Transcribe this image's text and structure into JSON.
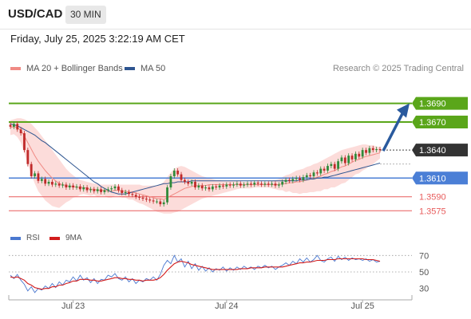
{
  "header": {
    "pair": "USD/CAD",
    "interval": "30 MIN"
  },
  "timestamp": "Friday, July 25, 2025 3:22:19 AM CET",
  "legend": {
    "items": [
      {
        "label": "MA 20 + Bollinger Bands",
        "color": "#f08a84"
      },
      {
        "label": "MA 50",
        "color": "#2e5590"
      }
    ]
  },
  "credit": "Research © 2025 Trading Central",
  "rsi_legend": {
    "items": [
      {
        "label": "RSI",
        "color": "#4a78d0"
      },
      {
        "label": "9MA",
        "color": "#d21c1c"
      }
    ]
  },
  "colors": {
    "bull": "#2f8a3a",
    "bear": "#c02a2a",
    "resistance": "#5aa61a",
    "pivot": "#4b7fd6",
    "support": "#e85c5c",
    "arrow": "#2a5a9e"
  },
  "chart_data": [
    {
      "type": "candlestick",
      "title": "",
      "xlabel": "",
      "ylabel": "",
      "ylim": [
        1.3565,
        1.3705
      ],
      "x_ticks": [
        "Jul 23",
        "Jul 24",
        "Jul 25"
      ],
      "levels": [
        {
          "label": "1.3690",
          "value": 1.369,
          "kind": "resistance"
        },
        {
          "label": "1.3670",
          "value": 1.367,
          "kind": "resistance"
        },
        {
          "label": "1.3640",
          "value": 1.364,
          "kind": "last"
        },
        {
          "label": "1.3610",
          "value": 1.361,
          "kind": "pivot"
        },
        {
          "label": "1.3590",
          "value": 1.359,
          "kind": "support"
        },
        {
          "label": "1.3575",
          "value": 1.3575,
          "kind": "support"
        }
      ],
      "close": [
        1.3665,
        1.3668,
        1.3662,
        1.3658,
        1.364,
        1.3625,
        1.3612,
        1.3615,
        1.3607,
        1.3609,
        1.3604,
        1.3606,
        1.3603,
        1.3604,
        1.3602,
        1.3603,
        1.36,
        1.3602,
        1.36,
        1.3601,
        1.3598,
        1.36,
        1.3597,
        1.3598,
        1.3596,
        1.3598,
        1.3595,
        1.3597,
        1.3598,
        1.3599,
        1.3601,
        1.3597,
        1.3594,
        1.3595,
        1.3593,
        1.3592,
        1.359,
        1.3589,
        1.3588,
        1.3587,
        1.3586,
        1.3585,
        1.3585,
        1.3582,
        1.3584,
        1.36,
        1.3612,
        1.3618,
        1.3614,
        1.3608,
        1.3606,
        1.3604,
        1.3606,
        1.36,
        1.3602,
        1.3599,
        1.36,
        1.3598,
        1.3601,
        1.36,
        1.3602,
        1.3601,
        1.3603,
        1.3602,
        1.3603,
        1.3604,
        1.3602,
        1.3603,
        1.3604,
        1.3603,
        1.3605,
        1.3604,
        1.3603,
        1.3604,
        1.3603,
        1.3604,
        1.3602,
        1.3603,
        1.3606,
        1.3608,
        1.3607,
        1.3609,
        1.361,
        1.3608,
        1.3611,
        1.3613,
        1.3612,
        1.3616,
        1.3615,
        1.362,
        1.3618,
        1.3623,
        1.3625,
        1.362,
        1.3628,
        1.3632,
        1.3626,
        1.3634,
        1.363,
        1.3636,
        1.3633,
        1.364,
        1.3637,
        1.3642,
        1.364,
        1.3641,
        1.364
      ],
      "ma20": [
        1.3664,
        1.3665,
        1.3664,
        1.3661,
        1.3655,
        1.3648,
        1.3641,
        1.3634,
        1.3628,
        1.3623,
        1.3618,
        1.3614,
        1.361,
        1.3607,
        1.3604,
        1.3603,
        1.3602,
        1.3601,
        1.3601,
        1.36,
        1.36,
        1.36,
        1.3599,
        1.3598,
        1.3598,
        1.3597,
        1.3597,
        1.3597,
        1.3596,
        1.3596,
        1.3597,
        1.3597,
        1.3596,
        1.3596,
        1.3595,
        1.3595,
        1.3594,
        1.3593,
        1.3592,
        1.3591,
        1.359,
        1.3589,
        1.3588,
        1.3588,
        1.3587,
        1.3589,
        1.3591,
        1.3593,
        1.3595,
        1.3597,
        1.3599,
        1.36,
        1.3601,
        1.3602,
        1.3602,
        1.3602,
        1.3602,
        1.3603,
        1.3603,
        1.3603,
        1.3603,
        1.3603,
        1.3603,
        1.3603,
        1.3603,
        1.3603,
        1.3603,
        1.3603,
        1.3603,
        1.3603,
        1.3603,
        1.3603,
        1.3603,
        1.3603,
        1.3603,
        1.3603,
        1.3603,
        1.3603,
        1.3604,
        1.3604,
        1.3605,
        1.3605,
        1.3606,
        1.3606,
        1.3607,
        1.3608,
        1.3609,
        1.361,
        1.3611,
        1.3612,
        1.3614,
        1.3615,
        1.3617,
        1.3618,
        1.362,
        1.3622,
        1.3623,
        1.3625,
        1.3627,
        1.3629,
        1.363,
        1.3632,
        1.3633,
        1.3634,
        1.3635,
        1.3636,
        1.3637
      ],
      "bb_upper": [
        1.3672,
        1.3673,
        1.3674,
        1.3674,
        1.3673,
        1.3671,
        1.3668,
        1.3664,
        1.366,
        1.3655,
        1.365,
        1.3645,
        1.364,
        1.3635,
        1.363,
        1.3625,
        1.362,
        1.3616,
        1.3613,
        1.361,
        1.3608,
        1.3607,
        1.3606,
        1.3605,
        1.3604,
        1.3604,
        1.3603,
        1.3603,
        1.3603,
        1.3603,
        1.3603,
        1.3603,
        1.3603,
        1.3603,
        1.3603,
        1.3603,
        1.3603,
        1.3603,
        1.3602,
        1.3602,
        1.3602,
        1.3602,
        1.3602,
        1.3603,
        1.3606,
        1.3611,
        1.3616,
        1.362,
        1.3622,
        1.3623,
        1.3622,
        1.362,
        1.3618,
        1.3616,
        1.3614,
        1.3612,
        1.3611,
        1.361,
        1.3609,
        1.3608,
        1.3608,
        1.3607,
        1.3607,
        1.3607,
        1.3607,
        1.3607,
        1.3606,
        1.3606,
        1.3606,
        1.3606,
        1.3606,
        1.3606,
        1.3606,
        1.3606,
        1.3606,
        1.3607,
        1.3608,
        1.3609,
        1.3611,
        1.3613,
        1.3614,
        1.3616,
        1.3618,
        1.3619,
        1.362,
        1.3622,
        1.3623,
        1.3625,
        1.3626,
        1.3628,
        1.363,
        1.3632,
        1.3634,
        1.3636,
        1.3638,
        1.364,
        1.3641,
        1.3642,
        1.3643,
        1.3644,
        1.3645,
        1.3646,
        1.3646,
        1.3645,
        1.3645,
        1.3644,
        1.3643
      ],
      "bb_lower": [
        1.3656,
        1.3657,
        1.3654,
        1.3648,
        1.3637,
        1.3625,
        1.3614,
        1.3604,
        1.3596,
        1.3591,
        1.3586,
        1.3583,
        1.358,
        1.3579,
        1.3578,
        1.3581,
        1.3584,
        1.3586,
        1.3589,
        1.359,
        1.3592,
        1.3593,
        1.3592,
        1.3591,
        1.3592,
        1.359,
        1.3591,
        1.3591,
        1.3589,
        1.3589,
        1.3591,
        1.3591,
        1.3589,
        1.3589,
        1.3587,
        1.3587,
        1.3585,
        1.3583,
        1.3582,
        1.358,
        1.3578,
        1.3576,
        1.3574,
        1.3573,
        1.3572,
        1.3572,
        1.3572,
        1.3573,
        1.3574,
        1.3576,
        1.3578,
        1.358,
        1.3582,
        1.3584,
        1.3586,
        1.3588,
        1.3589,
        1.359,
        1.3591,
        1.3592,
        1.3593,
        1.3594,
        1.3595,
        1.3596,
        1.3597,
        1.3598,
        1.3599,
        1.3599,
        1.3599,
        1.3599,
        1.36,
        1.36,
        1.36,
        1.36,
        1.36,
        1.3599,
        1.3598,
        1.3597,
        1.3597,
        1.3595,
        1.3596,
        1.3594,
        1.3594,
        1.3593,
        1.3594,
        1.3594,
        1.3595,
        1.3595,
        1.3596,
        1.3596,
        1.3598,
        1.3598,
        1.36,
        1.36,
        1.3602,
        1.3604,
        1.3605,
        1.3608,
        1.3611,
        1.3614,
        1.3615,
        1.3618,
        1.362,
        1.3623,
        1.3625,
        1.3628,
        1.3631
      ],
      "ma50": [
        1.3668,
        1.3667,
        1.3666,
        1.3664,
        1.3662,
        1.366,
        1.3658,
        1.3656,
        1.3653,
        1.365,
        1.3648,
        1.3645,
        1.3642,
        1.3639,
        1.3636,
        1.3633,
        1.363,
        1.3627,
        1.3624,
        1.3621,
        1.3618,
        1.3615,
        1.3612,
        1.3609,
        1.3606,
        1.3604,
        1.3601,
        1.3599,
        1.3597,
        1.3595,
        1.3594,
        1.3593,
        1.3593,
        1.3593,
        1.3594,
        1.3595,
        1.3596,
        1.3597,
        1.3598,
        1.3599,
        1.36,
        1.3601,
        1.3602,
        1.3603,
        1.3604,
        1.3604,
        1.3605,
        1.3605,
        1.3606,
        1.3606,
        1.3606,
        1.3606,
        1.3607,
        1.3607,
        1.3607,
        1.3607,
        1.3607,
        1.3607,
        1.3607,
        1.3607,
        1.3607,
        1.3607,
        1.3607,
        1.3607,
        1.3607,
        1.3607,
        1.3607,
        1.3607,
        1.3607,
        1.3607,
        1.3607,
        1.3607,
        1.3607,
        1.3607,
        1.3607,
        1.3607,
        1.3607,
        1.3607,
        1.3607,
        1.3607,
        1.3607,
        1.3607,
        1.3607,
        1.3608,
        1.3608,
        1.3608,
        1.3609,
        1.3609,
        1.361,
        1.361,
        1.3611,
        1.3611,
        1.3612,
        1.3613,
        1.3614,
        1.3615,
        1.3616,
        1.3617,
        1.3618,
        1.3619,
        1.362,
        1.3621,
        1.3622,
        1.3623,
        1.3624,
        1.3625,
        1.3626
      ],
      "rsi": {
        "ylim": [
          20,
          80
        ],
        "ticks": [
          "70",
          "50",
          "30"
        ],
        "rsi": [
          46,
          42,
          47,
          40,
          35,
          27,
          32,
          25,
          30,
          28,
          33,
          30,
          36,
          31,
          38,
          34,
          40,
          38,
          44,
          39,
          46,
          40,
          43,
          37,
          42,
          36,
          41,
          40,
          46,
          44,
          48,
          42,
          40,
          44,
          38,
          42,
          36,
          40,
          38,
          42,
          40,
          44,
          40,
          47,
          58,
          64,
          60,
          70,
          62,
          66,
          56,
          63,
          54,
          60,
          52,
          57,
          51,
          55,
          50,
          54,
          52,
          56,
          51,
          55,
          52,
          56,
          53,
          57,
          54,
          56,
          53,
          57,
          55,
          58,
          55,
          57,
          53,
          56,
          58,
          61,
          58,
          63,
          60,
          66,
          62,
          67,
          62,
          65,
          70,
          64,
          62,
          66,
          68,
          63,
          69,
          65,
          68,
          64,
          67,
          65,
          66,
          64,
          66,
          63,
          65,
          62,
          63
        ],
        "ma9": [
          44,
          43,
          44,
          42,
          40,
          36,
          34,
          31,
          30,
          29,
          30,
          30,
          32,
          32,
          34,
          34,
          36,
          37,
          39,
          39,
          41,
          41,
          41,
          40,
          40,
          39,
          39,
          40,
          41,
          42,
          43,
          43,
          42,
          42,
          41,
          41,
          40,
          40,
          39,
          40,
          40,
          40,
          41,
          43,
          47,
          52,
          56,
          60,
          62,
          63,
          62,
          61,
          59,
          58,
          57,
          56,
          55,
          54,
          53,
          53,
          53,
          53,
          53,
          53,
          53,
          53,
          54,
          54,
          54,
          55,
          55,
          55,
          55,
          56,
          56,
          56,
          56,
          56,
          56,
          57,
          58,
          59,
          60,
          61,
          61,
          62,
          62,
          63,
          64,
          64,
          64,
          65,
          65,
          65,
          66,
          66,
          66,
          66,
          66,
          66,
          66,
          66,
          65,
          65,
          65,
          64,
          63
        ]
      }
    }
  ]
}
